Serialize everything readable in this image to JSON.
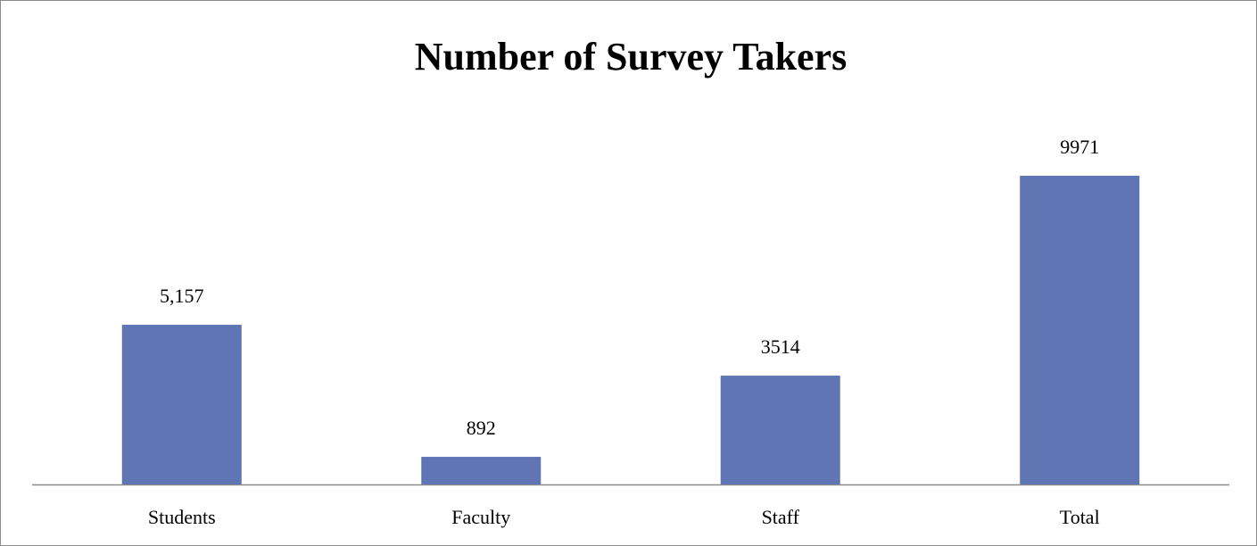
{
  "chart_data": {
    "type": "bar",
    "title": "Number of Survey Takers",
    "categories": [
      "Students",
      "Faculty",
      "Staff",
      "Total"
    ],
    "values": [
      5157,
      892,
      3514,
      9971
    ],
    "value_labels": [
      "5,157",
      "892",
      "3514",
      "9971"
    ],
    "color": "#6076b4"
  }
}
